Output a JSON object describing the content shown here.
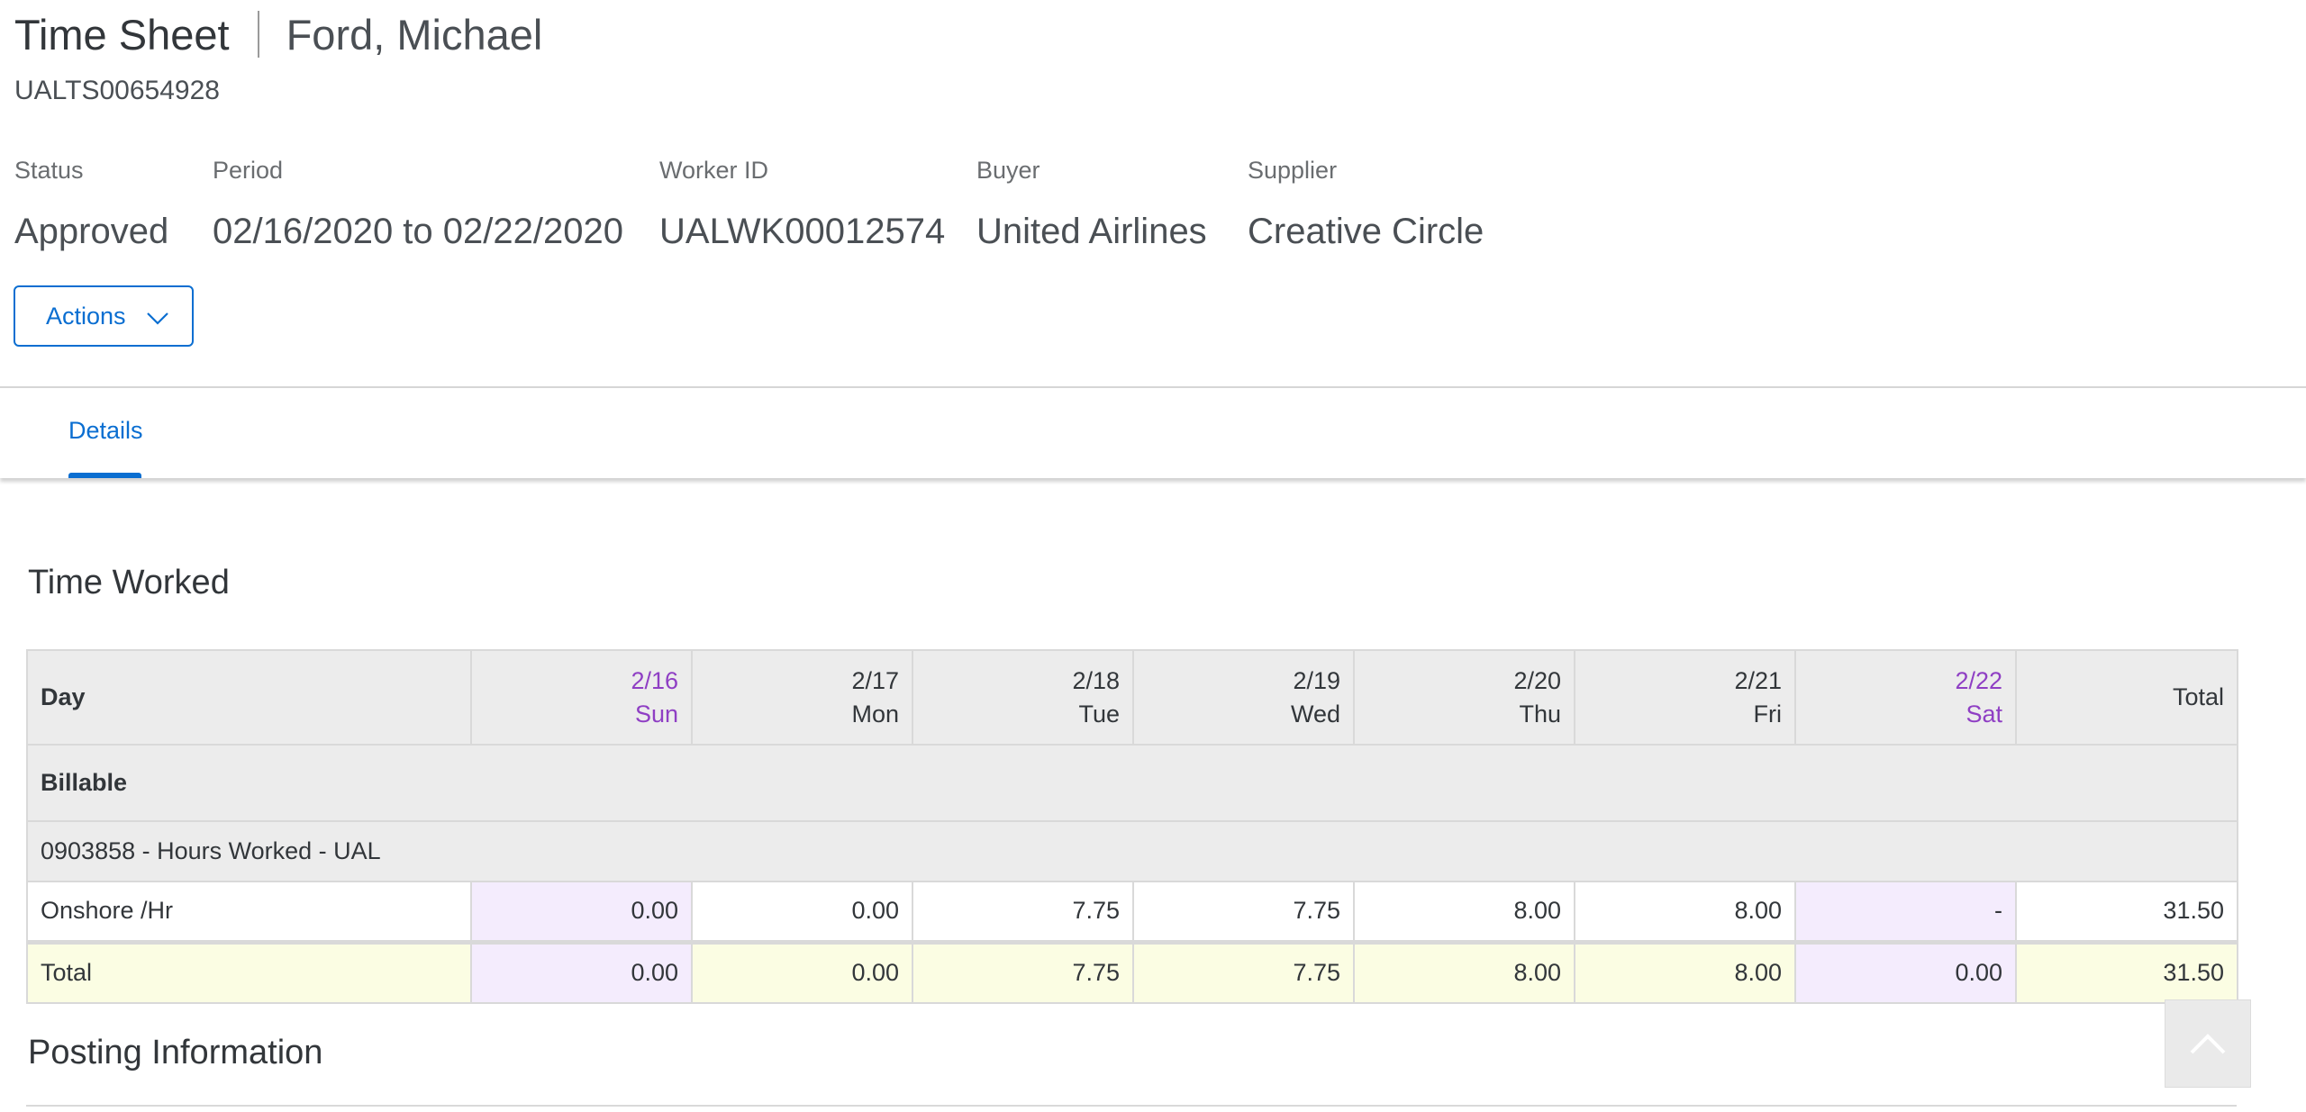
{
  "header": {
    "title": "Time Sheet",
    "subtitle": "Ford, Michael",
    "document_id": "UALTS00654928",
    "attributes": [
      {
        "label": "Status",
        "value": "Approved"
      },
      {
        "label": "Period",
        "value": "02/16/2020 to 02/22/2020"
      },
      {
        "label": "Worker ID",
        "value": "UALWK00012574"
      },
      {
        "label": "Buyer",
        "value": "United Airlines"
      },
      {
        "label": "Supplier",
        "value": "Creative Circle"
      }
    ],
    "actions_label": "Actions"
  },
  "tabs": [
    {
      "label": "Details",
      "selected": true
    }
  ],
  "colors": {
    "accent": "#0a6ed1",
    "weekend": "#8f3fc4",
    "weekend_bg": "#f4ecfd",
    "total_bg": "#fbfde3"
  },
  "time_worked": {
    "title": "Time Worked",
    "columns": {
      "day": "Day",
      "dates": [
        {
          "date": "2/16",
          "day": "Sun",
          "weekend": true
        },
        {
          "date": "2/17",
          "day": "Mon",
          "weekend": false
        },
        {
          "date": "2/18",
          "day": "Tue",
          "weekend": false
        },
        {
          "date": "2/19",
          "day": "Wed",
          "weekend": false
        },
        {
          "date": "2/20",
          "day": "Thu",
          "weekend": false
        },
        {
          "date": "2/21",
          "day": "Fri",
          "weekend": false
        },
        {
          "date": "2/22",
          "day": "Sat",
          "weekend": true
        }
      ],
      "total": "Total"
    },
    "group_label": "Billable",
    "code_label": "0903858 - Hours Worked - UAL",
    "rows": [
      {
        "label": "Onshore /Hr",
        "values": [
          "0.00",
          "0.00",
          "7.75",
          "7.75",
          "8.00",
          "8.00",
          "-"
        ],
        "total": "31.50"
      }
    ],
    "totals": {
      "label": "Total",
      "values": [
        "0.00",
        "0.00",
        "7.75",
        "7.75",
        "8.00",
        "8.00",
        "0.00"
      ],
      "total": "31.50"
    }
  },
  "posting": {
    "title": "Posting Information"
  },
  "scroll_top_icon": "chevron-up-icon"
}
